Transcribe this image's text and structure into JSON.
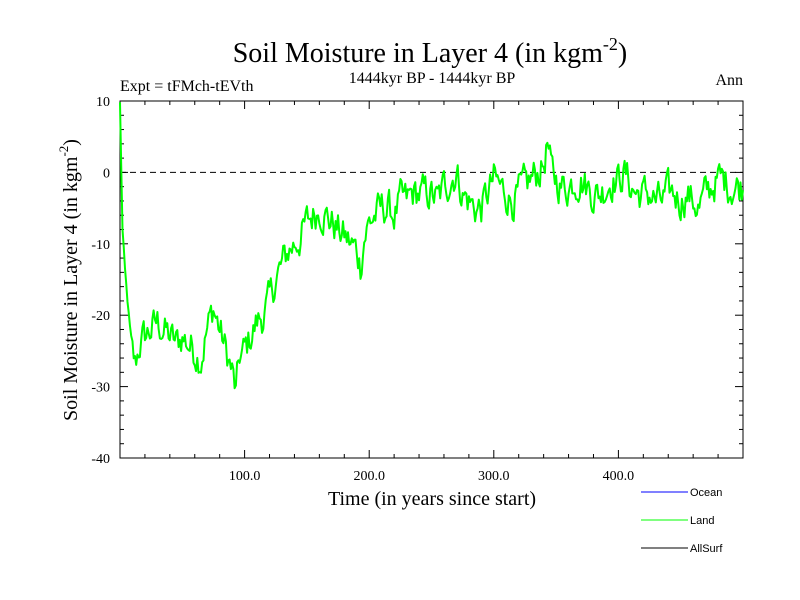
{
  "chart_data": {
    "type": "line",
    "title": "Soil Moisture in Layer 4 (in kgm",
    "title_sup": "-2",
    "title_close": ")",
    "subtitle": "1444kyr BP - 1444kyr BP",
    "expt_label": "Expt = tFMch-tEVth",
    "period_label": "Ann",
    "xlabel": "Time (in years since start)",
    "ylabel": "Soil Moisture in Layer 4 (in kgm",
    "ylabel_sup": "-2",
    "ylabel_close": ")",
    "xlim": [
      0,
      500
    ],
    "ylim": [
      -40,
      10
    ],
    "x_ticks": [
      100,
      200,
      300,
      400
    ],
    "x_tick_labels": [
      "100.0",
      "200.0",
      "300.0",
      "400.0"
    ],
    "y_ticks": [
      -40,
      -30,
      -20,
      -10,
      0,
      10
    ],
    "y_tick_labels": [
      "-40",
      "-30",
      "-20",
      "-10",
      "0",
      "10"
    ],
    "reference_line": 0,
    "series": [
      {
        "name": "Land",
        "color": "#00ff00",
        "keypoints": [
          [
            0,
            10
          ],
          [
            2,
            -8
          ],
          [
            4,
            -14
          ],
          [
            6,
            -18
          ],
          [
            8,
            -22
          ],
          [
            10,
            -25
          ],
          [
            12,
            -27
          ],
          [
            16,
            -24
          ],
          [
            20,
            -23
          ],
          [
            25,
            -22
          ],
          [
            30,
            -21
          ],
          [
            35,
            -22
          ],
          [
            40,
            -23
          ],
          [
            45,
            -24
          ],
          [
            50,
            -23
          ],
          [
            55,
            -24
          ],
          [
            60,
            -25
          ],
          [
            65,
            -26
          ],
          [
            70,
            -22
          ],
          [
            75,
            -19
          ],
          [
            80,
            -22
          ],
          [
            85,
            -25
          ],
          [
            90,
            -28
          ],
          [
            93,
            -31
          ],
          [
            96,
            -26
          ],
          [
            100,
            -25
          ],
          [
            105,
            -23
          ],
          [
            110,
            -21
          ],
          [
            115,
            -20
          ],
          [
            120,
            -18
          ],
          [
            125,
            -15
          ],
          [
            130,
            -13
          ],
          [
            135,
            -11
          ],
          [
            140,
            -10
          ],
          [
            145,
            -9
          ],
          [
            150,
            -7
          ],
          [
            155,
            -6
          ],
          [
            160,
            -5
          ],
          [
            165,
            -6
          ],
          [
            170,
            -7
          ],
          [
            175,
            -8
          ],
          [
            180,
            -9
          ],
          [
            185,
            -10
          ],
          [
            190,
            -11
          ],
          [
            193,
            -13
          ],
          [
            196,
            -9
          ],
          [
            200,
            -7
          ],
          [
            205,
            -6
          ],
          [
            210,
            -5
          ],
          [
            215,
            -5
          ],
          [
            220,
            -6
          ],
          [
            225,
            -4
          ],
          [
            230,
            -4
          ],
          [
            235,
            -3
          ],
          [
            240,
            -3
          ],
          [
            245,
            -3
          ],
          [
            250,
            -3
          ],
          [
            255,
            -4
          ],
          [
            260,
            -2
          ],
          [
            265,
            -1
          ],
          [
            270,
            0
          ],
          [
            275,
            -3
          ],
          [
            280,
            -4
          ],
          [
            285,
            -5
          ],
          [
            290,
            -5
          ],
          [
            295,
            -3
          ],
          [
            300,
            -1
          ],
          [
            305,
            -2
          ],
          [
            310,
            -3
          ],
          [
            315,
            -4
          ],
          [
            320,
            -3
          ],
          [
            325,
            -2
          ],
          [
            330,
            -1
          ],
          [
            335,
            0
          ],
          [
            340,
            1
          ],
          [
            343,
            4
          ],
          [
            346,
            0
          ],
          [
            350,
            -1
          ],
          [
            355,
            -2
          ],
          [
            360,
            -2
          ],
          [
            365,
            -1
          ],
          [
            370,
            -1
          ],
          [
            375,
            -2
          ],
          [
            380,
            -3
          ],
          [
            385,
            -3
          ],
          [
            390,
            -2
          ],
          [
            395,
            -1
          ],
          [
            400,
            -1
          ],
          [
            405,
            0
          ],
          [
            410,
            -2
          ],
          [
            415,
            -3
          ],
          [
            420,
            -3
          ],
          [
            425,
            -3
          ],
          [
            430,
            -4
          ],
          [
            435,
            -4
          ],
          [
            440,
            -3
          ],
          [
            445,
            -3
          ],
          [
            450,
            -4
          ],
          [
            455,
            -3
          ],
          [
            460,
            -4
          ],
          [
            465,
            -5
          ],
          [
            470,
            -3
          ],
          [
            475,
            -2
          ],
          [
            480,
            -1
          ],
          [
            485,
            -1
          ],
          [
            490,
            -2
          ],
          [
            495,
            -2
          ],
          [
            500,
            -2
          ]
        ]
      }
    ],
    "legend": [
      {
        "label": "Ocean",
        "color": "#0000ff"
      },
      {
        "label": "Land",
        "color": "#00ff00"
      },
      {
        "label": "AllSurf",
        "color": "#000000"
      }
    ]
  }
}
